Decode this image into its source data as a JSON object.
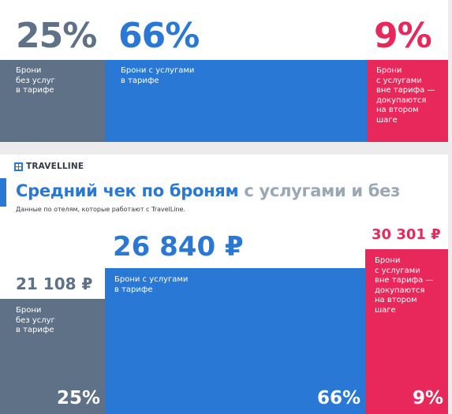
{
  "colors": {
    "gray": "#5e7186",
    "blue": "#2a78d6",
    "red": "#e8285a",
    "gray_text": "#5e7186",
    "title_light": "#9aa8b6"
  },
  "top_panel": {
    "segments": [
      {
        "percent": "25%",
        "label": "Брони\nбез услуг\nв тарифе",
        "color": "gray"
      },
      {
        "percent": "66%",
        "label": "Брони с услугами\nв тарифе",
        "color": "blue"
      },
      {
        "percent": "9%",
        "label": "Брони\nс услугами\nвне тарифа —\nдокупаются\nна втором\nшаге",
        "color": "red"
      }
    ]
  },
  "bottom_panel": {
    "brand": "TRAVELLINE",
    "brand_icon": "travelline-logo-icon",
    "title_bold": "Средний чек по броням",
    "title_light": "с услугами и без",
    "subtitle": "Данные по отелям, которые работают с TravelLine."
  },
  "chart_data": {
    "type": "bar",
    "categories": [
      "Брони без услуг в тарифе",
      "Брони с услугами в тарифе",
      "Брони с услугами вне тарифа — докупаются на втором шаге"
    ],
    "values": [
      21108,
      26840,
      30301
    ],
    "value_labels": [
      "21 108 ₽",
      "26 840 ₽",
      "30 301 ₽"
    ],
    "labels": [
      "Брони\nбез услуг\nв тарифе",
      "Брони с услугами\nв тарифе",
      "Брони\nс услугами\nвне тарифа —\nдокупаются\nна втором\nшаге"
    ],
    "shares": [
      25,
      66,
      9
    ],
    "share_labels": [
      "25%",
      "66%",
      "9%"
    ],
    "title": "Средний чек по броням с услугами и без",
    "subtitle": "Данные по отелям, которые работают с TravelLine."
  }
}
